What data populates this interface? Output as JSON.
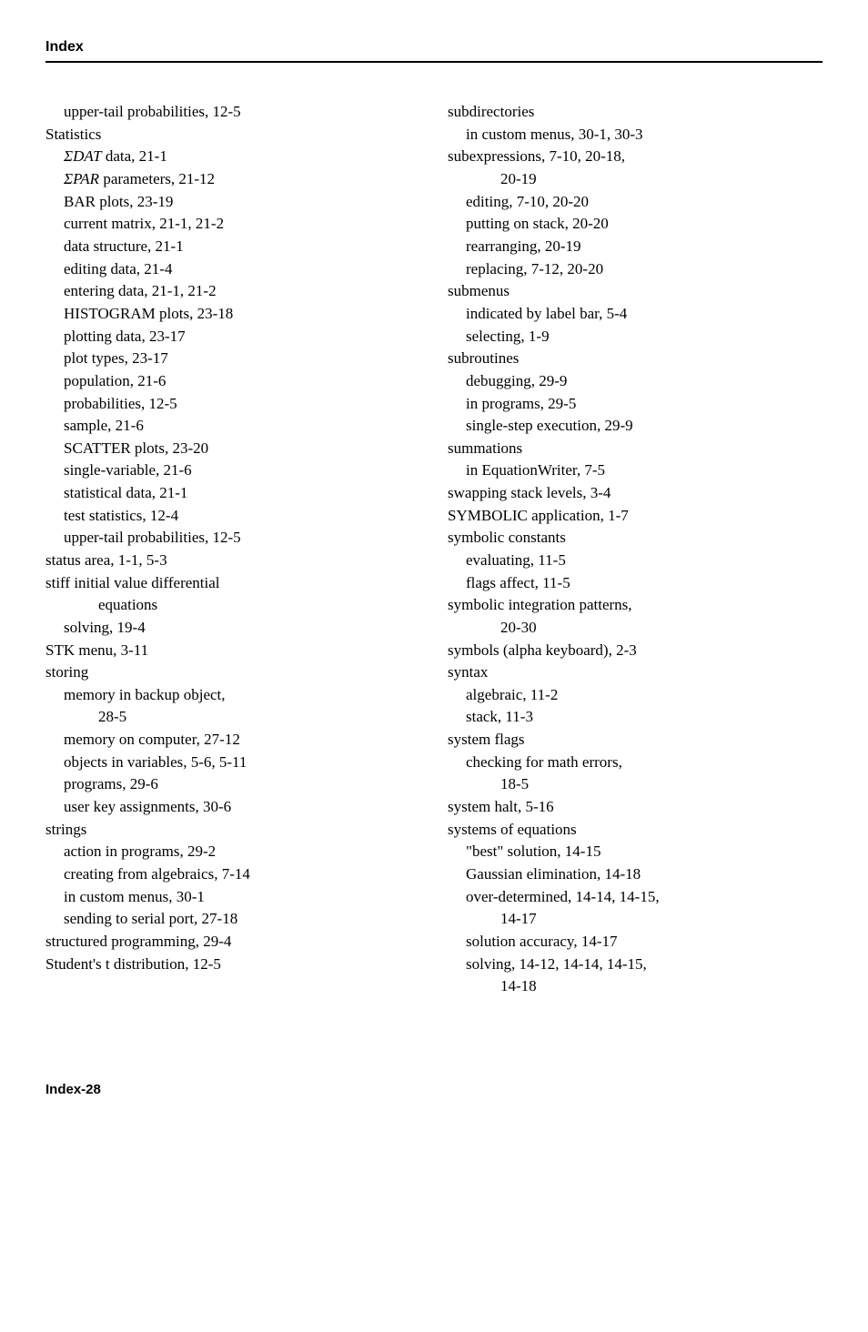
{
  "header": "Index",
  "footer": "Index-28",
  "left": [
    {
      "cls": "sub1",
      "t": "upper-tail probabilities, 12-5"
    },
    {
      "cls": "entry",
      "t": "Statistics"
    },
    {
      "cls": "sub1",
      "html": "<span class=\"ital\">ΣDAT</span> data, 21-1"
    },
    {
      "cls": "sub1",
      "html": "<span class=\"ital\">ΣPAR</span> parameters, 21-12"
    },
    {
      "cls": "sub1",
      "t": "BAR plots, 23-19"
    },
    {
      "cls": "sub1",
      "t": "current matrix, 21-1, 21-2"
    },
    {
      "cls": "sub1",
      "t": "data structure, 21-1"
    },
    {
      "cls": "sub1",
      "t": "editing data, 21-4"
    },
    {
      "cls": "sub1",
      "t": "entering data, 21-1, 21-2"
    },
    {
      "cls": "sub1",
      "t": "HISTOGRAM plots, 23-18"
    },
    {
      "cls": "sub1",
      "t": "plotting data, 23-17"
    },
    {
      "cls": "sub1",
      "t": "plot types, 23-17"
    },
    {
      "cls": "sub1",
      "t": "population, 21-6"
    },
    {
      "cls": "sub1",
      "t": "probabilities, 12-5"
    },
    {
      "cls": "sub1",
      "t": "sample, 21-6"
    },
    {
      "cls": "sub1",
      "t": "SCATTER plots, 23-20"
    },
    {
      "cls": "sub1",
      "t": "single-variable, 21-6"
    },
    {
      "cls": "sub1",
      "t": "statistical data, 21-1"
    },
    {
      "cls": "sub1",
      "t": "test statistics, 12-4"
    },
    {
      "cls": "sub1",
      "t": "upper-tail probabilities, 12-5"
    },
    {
      "cls": "entry",
      "t": "status area, 1-1, 5-3"
    },
    {
      "cls": "entry",
      "t": "stiff initial value differential"
    },
    {
      "cls": "sub2",
      "t": "equations"
    },
    {
      "cls": "sub1",
      "t": "solving, 19-4"
    },
    {
      "cls": "entry",
      "t": "STK menu, 3-11"
    },
    {
      "cls": "entry",
      "t": "storing"
    },
    {
      "cls": "sub1",
      "t": "memory in backup object,"
    },
    {
      "cls": "sub2",
      "t": "28-5"
    },
    {
      "cls": "sub1",
      "t": "memory on computer, 27-12"
    },
    {
      "cls": "sub1",
      "t": "objects in variables, 5-6, 5-11"
    },
    {
      "cls": "sub1",
      "t": "programs, 29-6"
    },
    {
      "cls": "sub1",
      "t": "user key assignments, 30-6"
    },
    {
      "cls": "entry",
      "t": "strings"
    },
    {
      "cls": "sub1",
      "t": "action in programs, 29-2"
    },
    {
      "cls": "sub1",
      "t": "creating from algebraics, 7-14"
    },
    {
      "cls": "sub1",
      "t": "in custom menus, 30-1"
    },
    {
      "cls": "sub1",
      "t": "sending to serial port, 27-18"
    },
    {
      "cls": "entry",
      "t": "structured programming, 29-4"
    },
    {
      "cls": "entry",
      "t": "Student's t distribution, 12-5"
    }
  ],
  "right": [
    {
      "cls": "entry",
      "t": "subdirectories"
    },
    {
      "cls": "sub1",
      "t": "in custom menus, 30-1, 30-3"
    },
    {
      "cls": "entry",
      "t": "subexpressions, 7-10, 20-18,"
    },
    {
      "cls": "sub2",
      "t": "20-19"
    },
    {
      "cls": "sub1",
      "t": "editing, 7-10, 20-20"
    },
    {
      "cls": "sub1",
      "t": "putting on stack, 20-20"
    },
    {
      "cls": "sub1",
      "t": "rearranging, 20-19"
    },
    {
      "cls": "sub1",
      "t": "replacing, 7-12, 20-20"
    },
    {
      "cls": "entry",
      "t": "submenus"
    },
    {
      "cls": "sub1",
      "t": "indicated by label bar, 5-4"
    },
    {
      "cls": "sub1",
      "t": "selecting, 1-9"
    },
    {
      "cls": "entry",
      "t": "subroutines"
    },
    {
      "cls": "sub1",
      "t": "debugging, 29-9"
    },
    {
      "cls": "sub1",
      "t": "in programs, 29-5"
    },
    {
      "cls": "sub1",
      "t": "single-step execution, 29-9"
    },
    {
      "cls": "entry",
      "t": "summations"
    },
    {
      "cls": "sub1",
      "t": "in EquationWriter, 7-5"
    },
    {
      "cls": "entry",
      "t": "swapping stack levels, 3-4"
    },
    {
      "cls": "entry",
      "t": "SYMBOLIC application, 1-7"
    },
    {
      "cls": "entry",
      "t": "symbolic constants"
    },
    {
      "cls": "sub1",
      "t": "evaluating, 11-5"
    },
    {
      "cls": "sub1",
      "t": "flags affect, 11-5"
    },
    {
      "cls": "entry",
      "t": "symbolic integration patterns,"
    },
    {
      "cls": "sub2",
      "t": "20-30"
    },
    {
      "cls": "entry",
      "t": "symbols (alpha keyboard), 2-3"
    },
    {
      "cls": "entry",
      "t": "syntax"
    },
    {
      "cls": "sub1",
      "t": "algebraic, 11-2"
    },
    {
      "cls": "sub1",
      "t": "stack, 11-3"
    },
    {
      "cls": "entry",
      "t": "system flags"
    },
    {
      "cls": "sub1",
      "t": "checking for math errors,"
    },
    {
      "cls": "sub2",
      "t": "18-5"
    },
    {
      "cls": "entry",
      "t": "system halt, 5-16"
    },
    {
      "cls": "entry",
      "t": "systems of equations"
    },
    {
      "cls": "sub1",
      "t": "\"best\" solution, 14-15"
    },
    {
      "cls": "sub1",
      "t": "Gaussian elimination, 14-18"
    },
    {
      "cls": "sub1",
      "t": "over-determined, 14-14, 14-15,"
    },
    {
      "cls": "sub2",
      "t": "14-17"
    },
    {
      "cls": "sub1",
      "t": "solution accuracy, 14-17"
    },
    {
      "cls": "sub1",
      "t": "solving, 14-12, 14-14, 14-15,"
    },
    {
      "cls": "sub2",
      "t": "14-18"
    }
  ]
}
